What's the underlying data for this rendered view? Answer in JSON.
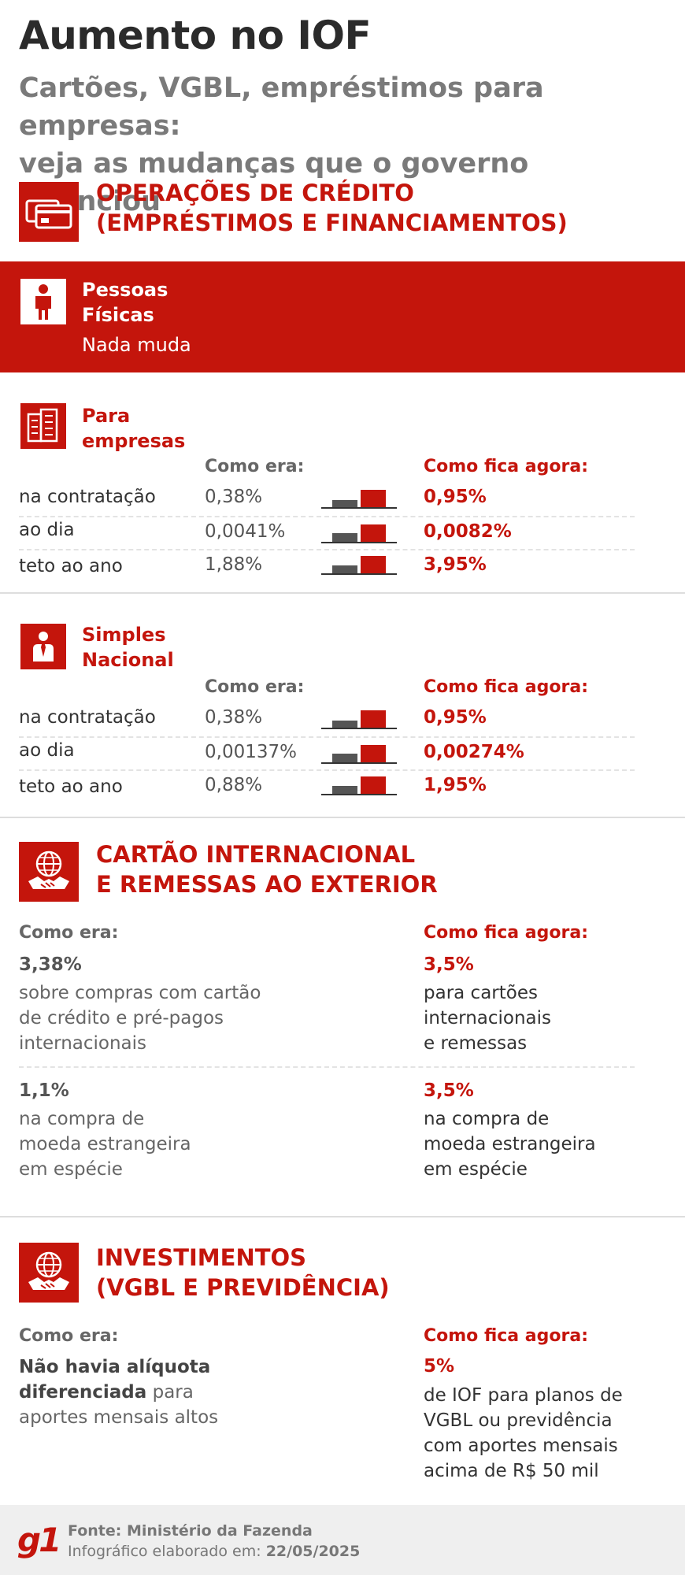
{
  "header": {
    "title": "Aumento no IOF",
    "subtitle_line1": "Cartões, VGBL, empréstimos para empresas:",
    "subtitle_line2": "veja as mudanças que o governo anunciou"
  },
  "credit_section": {
    "title_line1": "OPERAÇÕES DE CRÉDITO",
    "title_line2": "(EMPRÉSTIMOS E FINANCIAMENTOS)",
    "icon": "credit-card-icon",
    "pessoas_fisicas": {
      "label_line1": "Pessoas",
      "label_line2": "Físicas",
      "text": "Nada muda",
      "icon": "person-icon"
    },
    "empresas": {
      "label_line1": "Para",
      "label_line2": "empresas",
      "icon": "building-icon",
      "head_old": "Como era:",
      "head_new": "Como fica agora:",
      "rows": [
        {
          "label": "na contratação",
          "old": "0,38%",
          "new": "0,95%",
          "old_value": 0.38,
          "new_value": 0.95
        },
        {
          "label": "ao dia",
          "old": "0,0041%",
          "new": "0,0082%",
          "old_value": 0.0041,
          "new_value": 0.0082
        },
        {
          "label": "teto ao ano",
          "old": "1,88%",
          "new": "3,95%",
          "old_value": 1.88,
          "new_value": 3.95
        }
      ]
    },
    "simples": {
      "label_line1": "Simples",
      "label_line2": "Nacional",
      "icon": "businessman-icon",
      "head_old": "Como era:",
      "head_new": "Como fica agora:",
      "rows": [
        {
          "label": "na contratação",
          "old": "0,38%",
          "new": "0,95%",
          "old_value": 0.38,
          "new_value": 0.95
        },
        {
          "label": "ao dia",
          "old": "0,00137%",
          "new": "0,00274%",
          "old_value": 0.00137,
          "new_value": 0.00274
        },
        {
          "label": "teto ao ano",
          "old": "0,88%",
          "new": "1,95%",
          "old_value": 0.88,
          "new_value": 1.95
        }
      ]
    }
  },
  "international_section": {
    "title_line1": "CARTÃO INTERNACIONAL",
    "title_line2": "E REMESSAS AO EXTERIOR",
    "icon": "globe-handshake-icon",
    "head_old": "Como era:",
    "head_new": "Como fica agora:",
    "item1": {
      "old_value": "3,38%",
      "old_desc": [
        "sobre compras com cartão",
        "de crédito e pré-pagos",
        "internacionais"
      ],
      "new_value": "3,5%",
      "new_desc": [
        "para cartões",
        "internacionais",
        "e remessas"
      ]
    },
    "item2": {
      "old_value": "1,1%",
      "old_desc": [
        "na compra de",
        "moeda estrangeira",
        "em espécie"
      ],
      "new_value": "3,5%",
      "new_desc": [
        "na compra de",
        "moeda estrangeira",
        "em espécie"
      ]
    }
  },
  "investments_section": {
    "title_line1": "INVESTIMENTOS",
    "title_line2": "(VGBL E PREVIDÊNCIA)",
    "icon": "globe-handshake-icon",
    "head_old": "Como era:",
    "head_new": "Como fica agora:",
    "old_bold_line1": "Não havia alíquota",
    "old_bold_line2": "diferenciada",
    "old_rest_line2": " para",
    "old_line3": "aportes mensais altos",
    "new_value": "5%",
    "new_desc": [
      "de IOF para planos de",
      "VGBL ou previdência",
      "com aportes mensais",
      "acima de R$ 50 mil"
    ]
  },
  "footer": {
    "logo": "g1",
    "source": "Fonte: Ministério da Fazenda",
    "date_label": "Infográfico elaborado em:",
    "date_value": "22/05/2025"
  },
  "colors": {
    "accent": "#c4150c",
    "old_bar": "#555555"
  }
}
